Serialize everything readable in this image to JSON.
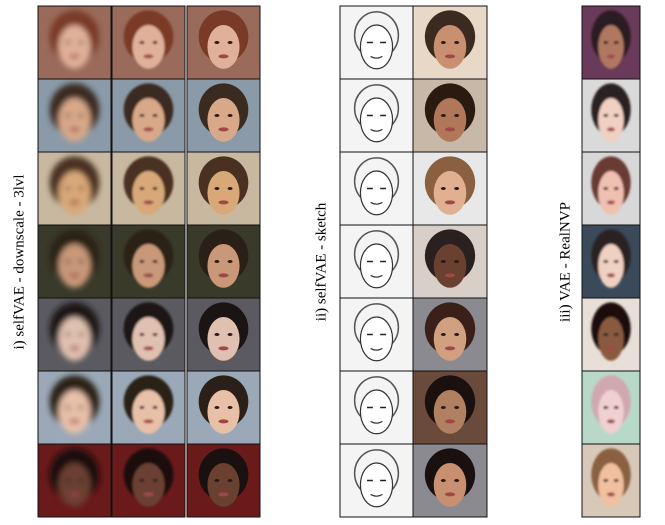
{
  "panels": [
    {
      "label": "i) selfVAE - downscale - 3lvl"
    },
    {
      "label": "ii) selfVAE - sketch"
    },
    {
      "label": "iii) VAE - RealNVP"
    }
  ]
}
